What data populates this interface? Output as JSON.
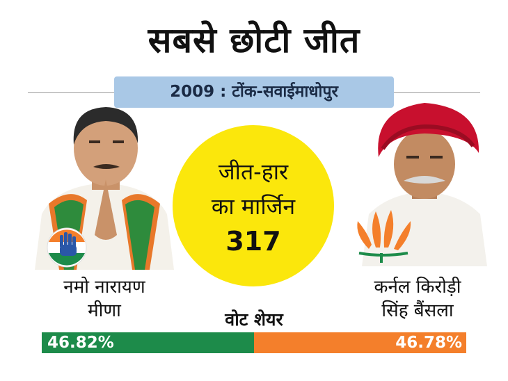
{
  "header": {
    "title": "सबसे छोटी जीत",
    "subtitle": "2009 : टोंक-सवाईमाधोपुर"
  },
  "margin": {
    "label_line1": "जीत-हार",
    "label_line2": "का मार्जिन",
    "value": "317"
  },
  "vote_share": {
    "label": "वोट शेयर"
  },
  "candidates": [
    {
      "name_line1": "नमो नारायण",
      "name_line2": "मीणा",
      "party_symbol": "hand-icon",
      "vote_share_text": "46.82%",
      "vote_share": 46.82,
      "bar_color": "#1d8b4a"
    },
    {
      "name_line1": "कर्नल किरोड़ी",
      "name_line2": "सिंह बैंसला",
      "party_symbol": "lotus-icon",
      "vote_share_text": "46.78%",
      "vote_share": 46.78,
      "bar_color": "#f47f2b"
    }
  ],
  "colors": {
    "circle": "#fbe70c",
    "subtitle_bg": "#a9c8e6"
  }
}
